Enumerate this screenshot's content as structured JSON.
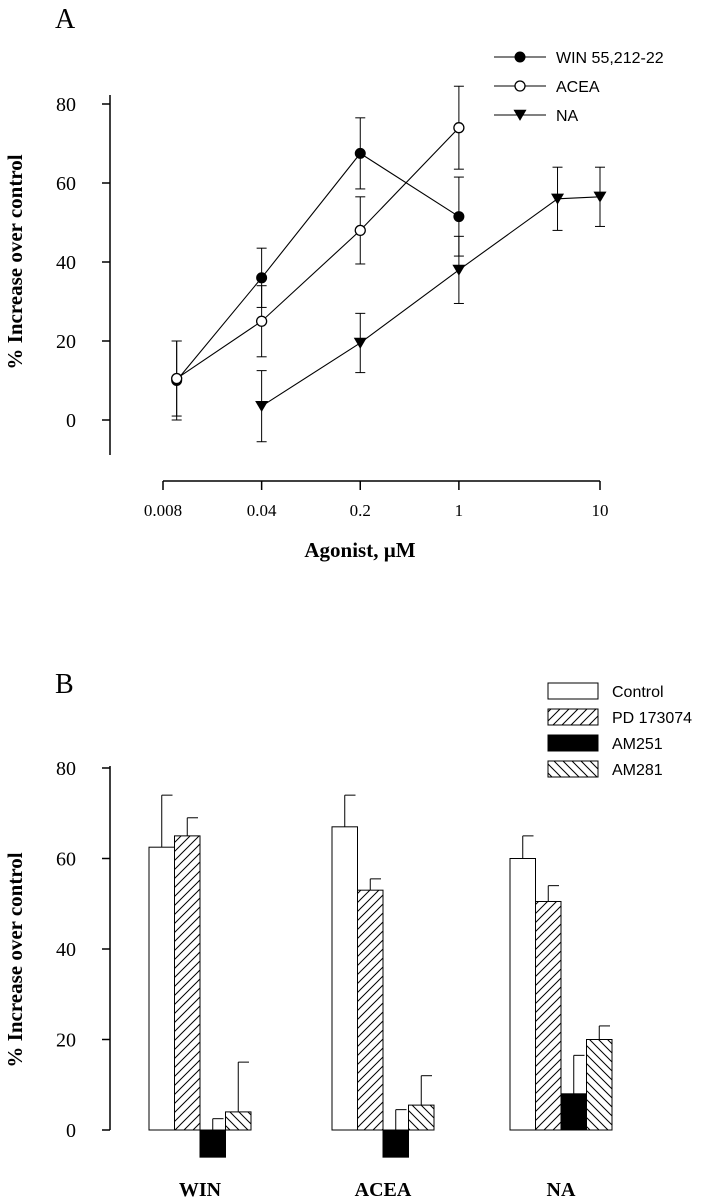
{
  "chart_data": [
    {
      "panel_label": "A",
      "type": "line",
      "xlabel": "Agonist, µM",
      "ylabel": "% Increase over control",
      "x_scale": "log",
      "xlim": [
        0.008,
        10
      ],
      "ylim": [
        -10,
        85
      ],
      "x_ticks": [
        0.008,
        0.04,
        0.2,
        1,
        10
      ],
      "x_tick_labels": [
        "0.008",
        "0.04",
        "0.2",
        "1",
        "10"
      ],
      "y_ticks": [
        0,
        20,
        40,
        60,
        80
      ],
      "y_tick_labels": [
        "0",
        "20",
        "40",
        "60",
        "80"
      ],
      "legend_position": "top-right",
      "series": [
        {
          "name": "WIN 55,212-22",
          "marker": "filled-circle",
          "points": [
            {
              "x": 0.01,
              "y": 10,
              "err": 10
            },
            {
              "x": 0.04,
              "y": 36,
              "err": 7.5
            },
            {
              "x": 0.2,
              "y": 67.5,
              "err": 9
            },
            {
              "x": 1,
              "y": 51.5,
              "err": 10
            }
          ]
        },
        {
          "name": "ACEA",
          "marker": "open-circle",
          "points": [
            {
              "x": 0.01,
              "y": 10.5,
              "err": 9.5
            },
            {
              "x": 0.04,
              "y": 25,
              "err": 9
            },
            {
              "x": 0.2,
              "y": 48,
              "err": 8.5
            },
            {
              "x": 1,
              "y": 74,
              "err": 10.5
            }
          ]
        },
        {
          "name": "NA",
          "marker": "filled-triangle-down",
          "points": [
            {
              "x": 0.04,
              "y": 3.5,
              "err": 9
            },
            {
              "x": 0.2,
              "y": 19.5,
              "err": 7.5
            },
            {
              "x": 1,
              "y": 38,
              "err": 8.5
            },
            {
              "x": 5,
              "y": 56,
              "err": 8
            },
            {
              "x": 10,
              "y": 56.5,
              "err": 7.5
            }
          ]
        }
      ]
    },
    {
      "panel_label": "B",
      "type": "bar",
      "xlabel": "",
      "ylabel": "% Increase over control",
      "ylim": [
        -6,
        80
      ],
      "y_ticks": [
        0,
        20,
        40,
        60,
        80
      ],
      "y_tick_labels": [
        "0",
        "20",
        "40",
        "60",
        "80"
      ],
      "categories": [
        "WIN",
        "ACEA",
        "NA"
      ],
      "legend_position": "top-right",
      "series": [
        {
          "name": "Control",
          "pattern": "open",
          "values": [
            62.5,
            67,
            60
          ],
          "errors": [
            11.5,
            7,
            5
          ]
        },
        {
          "name": "PD 173074",
          "pattern": "forward-hatch",
          "values": [
            65,
            53,
            50.5
          ],
          "errors": [
            4,
            2.5,
            3.5
          ]
        },
        {
          "name": "AM251",
          "pattern": "solid-black",
          "values": [
            -6,
            -6,
            8
          ],
          "errors": [
            8.5,
            10.5,
            8.5
          ]
        },
        {
          "name": "AM281",
          "pattern": "back-hatch",
          "values": [
            4,
            5.5,
            20
          ],
          "errors": [
            11,
            6.5,
            3
          ]
        }
      ]
    }
  ]
}
